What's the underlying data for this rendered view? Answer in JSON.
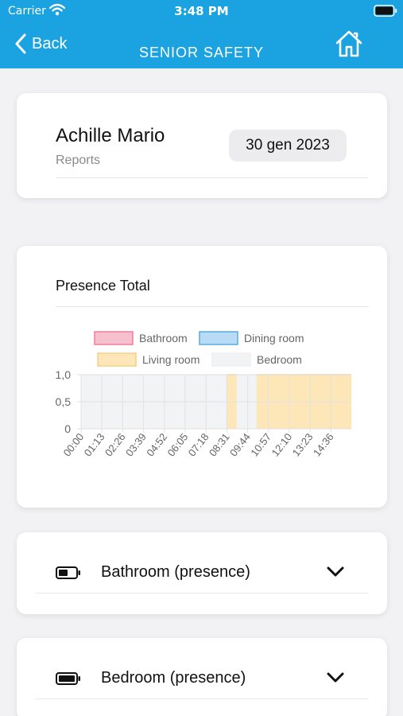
{
  "status": {
    "carrier": "Carrier",
    "time": "3:48 PM"
  },
  "nav": {
    "back_label": "Back",
    "title": "SENIOR SAFETY"
  },
  "profile": {
    "name": "Achille Mario",
    "subtitle": "Reports",
    "date": "30 gen 2023"
  },
  "presence": {
    "title": "Presence Total"
  },
  "chart_data": {
    "type": "area",
    "legend": [
      {
        "name": "Bathroom",
        "fill": "#f7c0cf",
        "stroke": "#ee7f99"
      },
      {
        "name": "Dining room",
        "fill": "#b8dcf6",
        "stroke": "#5aa9e0"
      },
      {
        "name": "Living room",
        "fill": "#fde7b8",
        "stroke": "#f4d182"
      },
      {
        "name": "Bedroom",
        "fill": "#f1f3f5",
        "stroke": "#eef0f2"
      }
    ],
    "legend_position": "top",
    "x_ticks": [
      "00:00",
      "01:13",
      "02:26",
      "03:39",
      "04:52",
      "06:05",
      "07:18",
      "08:31",
      "09:44",
      "10:57",
      "12:10",
      "13:23",
      "14:36"
    ],
    "y_ticks": [
      "1,0",
      "0,5",
      "0"
    ],
    "ylim": [
      0,
      1
    ],
    "grid": true,
    "series": [
      {
        "name": "Bedroom",
        "ranges": [
          [
            "00:00",
            "16:00"
          ]
        ],
        "value": 1
      },
      {
        "name": "Living room",
        "ranges": [
          [
            "08:31",
            "09:05"
          ],
          [
            "10:15",
            "15:50"
          ]
        ],
        "value": 1
      }
    ]
  },
  "sections": [
    {
      "label": "Bathroom (presence)",
      "battery": "battery-half-icon"
    },
    {
      "label": "Bedroom (presence)",
      "battery": "battery-full-icon"
    }
  ],
  "colors": {
    "accent": "#1aa3e0"
  }
}
